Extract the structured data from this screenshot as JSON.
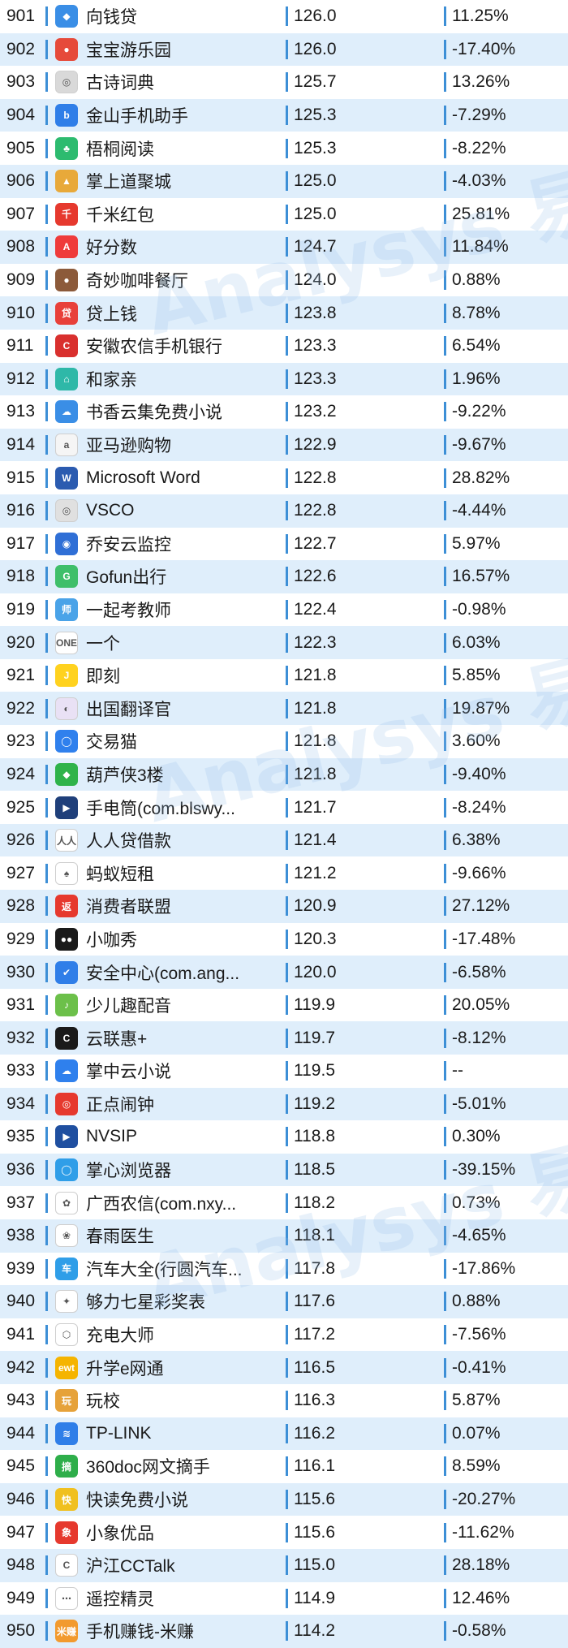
{
  "watermark": [
    "Analysys 易观",
    "Analysys 易观",
    "Analysys 易观"
  ],
  "rows": [
    {
      "rank": "901",
      "name": "向钱贷",
      "value": "126.0",
      "change": "11.25%",
      "icon": {
        "color": "#3a8ee6",
        "glyph": "◆"
      }
    },
    {
      "rank": "902",
      "name": "宝宝游乐园",
      "value": "126.0",
      "change": "-17.40%",
      "icon": {
        "color": "#e64a3a",
        "glyph": "●"
      }
    },
    {
      "rank": "903",
      "name": "古诗词典",
      "value": "125.7",
      "change": "13.26%",
      "icon": {
        "color": "#d9d9d9",
        "glyph": "◎"
      }
    },
    {
      "rank": "904",
      "name": "金山手机助手",
      "value": "125.3",
      "change": "-7.29%",
      "icon": {
        "color": "#2f7ee8",
        "glyph": "b"
      }
    },
    {
      "rank": "905",
      "name": "梧桐阅读",
      "value": "125.3",
      "change": "-8.22%",
      "icon": {
        "color": "#2dbb6f",
        "glyph": "♣"
      }
    },
    {
      "rank": "906",
      "name": "掌上道聚城",
      "value": "125.0",
      "change": "-4.03%",
      "icon": {
        "color": "#e8a93a",
        "glyph": "▲"
      }
    },
    {
      "rank": "907",
      "name": "千米红包",
      "value": "125.0",
      "change": "25.81%",
      "icon": {
        "color": "#e6392e",
        "glyph": "千"
      }
    },
    {
      "rank": "908",
      "name": "好分数",
      "value": "124.7",
      "change": "11.84%",
      "icon": {
        "color": "#ef3b3b",
        "glyph": "A"
      }
    },
    {
      "rank": "909",
      "name": "奇妙咖啡餐厅",
      "value": "124.0",
      "change": "0.88%",
      "icon": {
        "color": "#8c5a3a",
        "glyph": "●"
      }
    },
    {
      "rank": "910",
      "name": "贷上钱",
      "value": "123.8",
      "change": "8.78%",
      "icon": {
        "color": "#e8403a",
        "glyph": "贷"
      }
    },
    {
      "rank": "911",
      "name": "安徽农信手机银行",
      "value": "123.3",
      "change": "6.54%",
      "icon": {
        "color": "#d9302e",
        "glyph": "C"
      }
    },
    {
      "rank": "912",
      "name": "和家亲",
      "value": "123.3",
      "change": "1.96%",
      "icon": {
        "color": "#2eb8a8",
        "glyph": "⌂"
      }
    },
    {
      "rank": "913",
      "name": "书香云集免费小说",
      "value": "123.2",
      "change": "-9.22%",
      "icon": {
        "color": "#3a8ee6",
        "glyph": "☁"
      }
    },
    {
      "rank": "914",
      "name": "亚马逊购物",
      "value": "122.9",
      "change": "-9.67%",
      "icon": {
        "color": "#f5f5f5",
        "glyph": "a"
      }
    },
    {
      "rank": "915",
      "name": "Microsoft Word",
      "value": "122.8",
      "change": "28.82%",
      "icon": {
        "color": "#2b5bb0",
        "glyph": "W"
      }
    },
    {
      "rank": "916",
      "name": "VSCO",
      "value": "122.8",
      "change": "-4.44%",
      "icon": {
        "color": "#e0e0e0",
        "glyph": "◎"
      }
    },
    {
      "rank": "917",
      "name": "乔安云监控",
      "value": "122.7",
      "change": "5.97%",
      "icon": {
        "color": "#2f6fd6",
        "glyph": "◉"
      }
    },
    {
      "rank": "918",
      "name": "Gofun出行",
      "value": "122.6",
      "change": "16.57%",
      "icon": {
        "color": "#3fbf6a",
        "glyph": "G"
      }
    },
    {
      "rank": "919",
      "name": "一起考教师",
      "value": "122.4",
      "change": "-0.98%",
      "icon": {
        "color": "#4aa3e8",
        "glyph": "师"
      }
    },
    {
      "rank": "920",
      "name": "一个",
      "value": "122.3",
      "change": "6.03%",
      "icon": {
        "color": "#ffffff",
        "glyph": "ONE"
      }
    },
    {
      "rank": "921",
      "name": "即刻",
      "value": "121.8",
      "change": "5.85%",
      "icon": {
        "color": "#ffd21f",
        "glyph": "J"
      }
    },
    {
      "rank": "922",
      "name": "出国翻译官",
      "value": "121.8",
      "change": "19.87%",
      "icon": {
        "color": "#e9e1f5",
        "glyph": "◐"
      }
    },
    {
      "rank": "923",
      "name": "交易猫",
      "value": "121.8",
      "change": "3.60%",
      "icon": {
        "color": "#2f80ed",
        "glyph": "◯"
      }
    },
    {
      "rank": "924",
      "name": "葫芦侠3楼",
      "value": "121.8",
      "change": "-9.40%",
      "icon": {
        "color": "#2fb34a",
        "glyph": "◆"
      }
    },
    {
      "rank": "925",
      "name": "手电筒(com.blswy...",
      "value": "121.7",
      "change": "-8.24%",
      "icon": {
        "color": "#1f3f7a",
        "glyph": "▶"
      }
    },
    {
      "rank": "926",
      "name": "人人贷借款",
      "value": "121.4",
      "change": "6.38%",
      "icon": {
        "color": "#ffffff",
        "glyph": "人人"
      }
    },
    {
      "rank": "927",
      "name": "蚂蚁短租",
      "value": "121.2",
      "change": "-9.66%",
      "icon": {
        "color": "#ffffff",
        "glyph": "♠"
      }
    },
    {
      "rank": "928",
      "name": "消费者联盟",
      "value": "120.9",
      "change": "27.12%",
      "icon": {
        "color": "#e6392e",
        "glyph": "返"
      }
    },
    {
      "rank": "929",
      "name": "小咖秀",
      "value": "120.3",
      "change": "-17.48%",
      "icon": {
        "color": "#1a1a1a",
        "glyph": "●●"
      }
    },
    {
      "rank": "930",
      "name": "安全中心(com.ang...",
      "value": "120.0",
      "change": "-6.58%",
      "icon": {
        "color": "#2f7ee8",
        "glyph": "✔"
      }
    },
    {
      "rank": "931",
      "name": "少儿趣配音",
      "value": "119.9",
      "change": "20.05%",
      "icon": {
        "color": "#6cc04a",
        "glyph": "♪"
      }
    },
    {
      "rank": "932",
      "name": "云联惠+",
      "value": "119.7",
      "change": "-8.12%",
      "icon": {
        "color": "#1a1a1a",
        "glyph": "C"
      }
    },
    {
      "rank": "933",
      "name": "掌中云小说",
      "value": "119.5",
      "change": "--",
      "icon": {
        "color": "#2f80ed",
        "glyph": "☁"
      }
    },
    {
      "rank": "934",
      "name": "正点闹钟",
      "value": "119.2",
      "change": "-5.01%",
      "icon": {
        "color": "#e6392e",
        "glyph": "◎"
      }
    },
    {
      "rank": "935",
      "name": "NVSIP",
      "value": "118.8",
      "change": "0.30%",
      "icon": {
        "color": "#1f4fa0",
        "glyph": "▶"
      }
    },
    {
      "rank": "936",
      "name": "掌心浏览器",
      "value": "118.5",
      "change": "-39.15%",
      "icon": {
        "color": "#2f9ee8",
        "glyph": "◯"
      }
    },
    {
      "rank": "937",
      "name": "广西农信(com.nxy...",
      "value": "118.2",
      "change": "0.73%",
      "icon": {
        "color": "#ffffff",
        "glyph": "✿"
      }
    },
    {
      "rank": "938",
      "name": "春雨医生",
      "value": "118.1",
      "change": "-4.65%",
      "icon": {
        "color": "#ffffff",
        "glyph": "❀"
      }
    },
    {
      "rank": "939",
      "name": "汽车大全(行圆汽车...",
      "value": "117.8",
      "change": "-17.86%",
      "icon": {
        "color": "#2f9ee8",
        "glyph": "车"
      }
    },
    {
      "rank": "940",
      "name": "够力七星彩奖表",
      "value": "117.6",
      "change": "0.88%",
      "icon": {
        "color": "#ffffff",
        "glyph": "✦"
      }
    },
    {
      "rank": "941",
      "name": "充电大师",
      "value": "117.2",
      "change": "-7.56%",
      "icon": {
        "color": "#ffffff",
        "glyph": "⬡"
      }
    },
    {
      "rank": "942",
      "name": "升学e网通",
      "value": "116.5",
      "change": "-0.41%",
      "icon": {
        "color": "#f5b400",
        "glyph": "ewt"
      }
    },
    {
      "rank": "943",
      "name": "玩校",
      "value": "116.3",
      "change": "5.87%",
      "icon": {
        "color": "#e6a23a",
        "glyph": "玩"
      }
    },
    {
      "rank": "944",
      "name": "TP-LINK",
      "value": "116.2",
      "change": "0.07%",
      "icon": {
        "color": "#2f7ee8",
        "glyph": "≋"
      }
    },
    {
      "rank": "945",
      "name": "360doc网文摘手",
      "value": "116.1",
      "change": "8.59%",
      "icon": {
        "color": "#2eae4a",
        "glyph": "摘"
      }
    },
    {
      "rank": "946",
      "name": "快读免费小说",
      "value": "115.6",
      "change": "-20.27%",
      "icon": {
        "color": "#f0c020",
        "glyph": "快"
      }
    },
    {
      "rank": "947",
      "name": "小象优品",
      "value": "115.6",
      "change": "-11.62%",
      "icon": {
        "color": "#e6392e",
        "glyph": "象"
      }
    },
    {
      "rank": "948",
      "name": "沪江CCTalk",
      "value": "115.0",
      "change": "28.18%",
      "icon": {
        "color": "#ffffff",
        "glyph": "C"
      }
    },
    {
      "rank": "949",
      "name": "遥控精灵",
      "value": "114.9",
      "change": "12.46%",
      "icon": {
        "color": "#ffffff",
        "glyph": "⋯"
      }
    },
    {
      "rank": "950",
      "name": "手机赚钱-米赚",
      "value": "114.2",
      "change": "-0.58%",
      "icon": {
        "color": "#f29a2e",
        "glyph": "米赚"
      }
    }
  ]
}
